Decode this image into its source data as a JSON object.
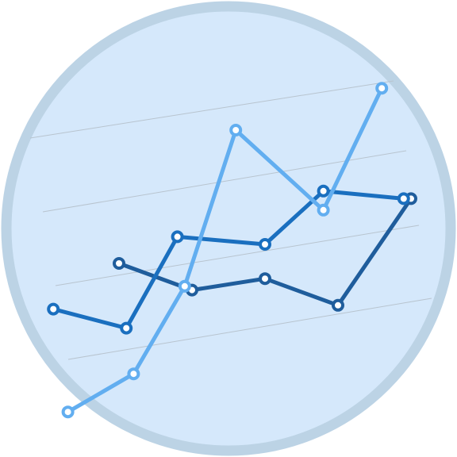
{
  "icon": {
    "name": "line-chart-icon",
    "colors": {
      "background": "#ffffff",
      "disc_fill": "#d5e8fb",
      "disc_ring": "#bcd3e5",
      "grid_line": "#b8c4cf",
      "marker_fill": "#ffffff"
    },
    "series": [
      {
        "color": "#1f5d9c",
        "points": [
          [
            1,
            4.5
          ],
          [
            2,
            3.8
          ],
          [
            3,
            4.1
          ],
          [
            4,
            3.4
          ],
          [
            5,
            6.2
          ]
        ]
      },
      {
        "color": "#1a6fbf",
        "points": [
          [
            0.1,
            3.3
          ],
          [
            1.1,
            2.8
          ],
          [
            1.8,
            5.2
          ],
          [
            3,
            5.0
          ],
          [
            3.8,
            6.4
          ],
          [
            4.9,
            6.2
          ]
        ]
      },
      {
        "color": "#62aef0",
        "points": [
          [
            0.3,
            0.6
          ],
          [
            1.2,
            1.6
          ],
          [
            1.9,
            3.9
          ],
          [
            2.6,
            8.0
          ],
          [
            3.8,
            5.9
          ],
          [
            4.6,
            9.1
          ]
        ]
      }
    ]
  }
}
